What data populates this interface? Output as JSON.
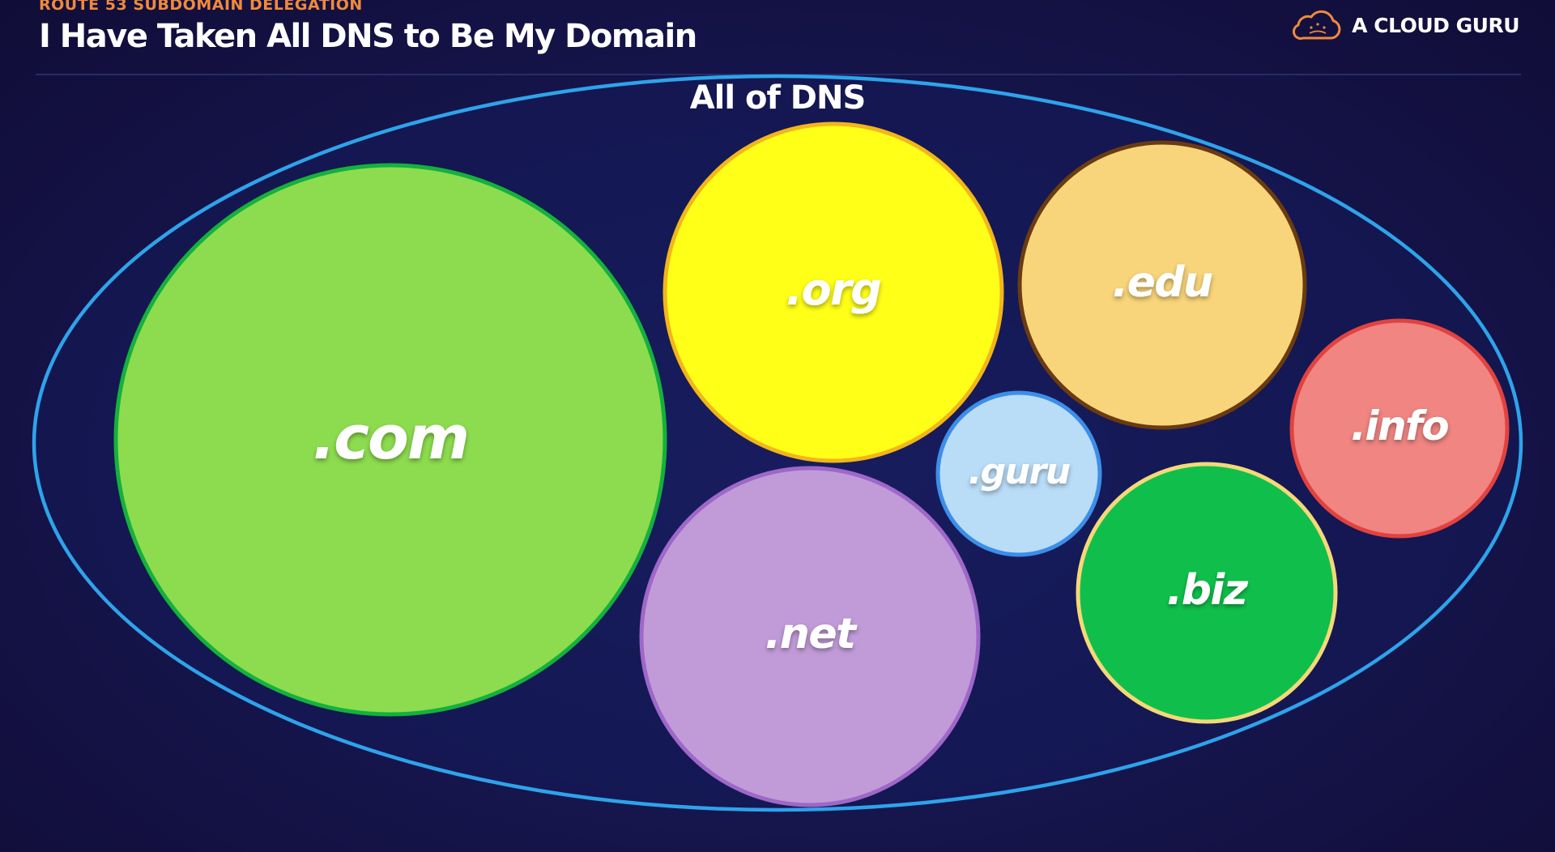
{
  "header": {
    "eyebrow": "ROUTE 53 SUBDOMAIN DELEGATION",
    "title": "I Have Taken All DNS to Be My Domain"
  },
  "brand": {
    "name": "A CLOUD GURU",
    "icon": "cloud-guru-logo-icon",
    "color": "#f08a3c"
  },
  "diagram": {
    "container_label": "All of DNS",
    "container_color": "#2ea3ea",
    "domains": [
      {
        "label": ".com",
        "fill": "#8ddc4f",
        "stroke": "#14b13c"
      },
      {
        "label": ".org",
        "fill": "#ffff17",
        "stroke": "#f2b61a"
      },
      {
        "label": ".edu",
        "fill": "#f8d57a",
        "stroke": "#6b3b10"
      },
      {
        "label": ".guru",
        "fill": "#b9dcf7",
        "stroke": "#3c8ee8"
      },
      {
        "label": ".net",
        "fill": "#c19bd8",
        "stroke": "#9e67c8"
      },
      {
        "label": ".info",
        "fill": "#f08582",
        "stroke": "#e2423f"
      },
      {
        "label": ".biz",
        "fill": "#10bf4b",
        "stroke": "#f5d878"
      }
    ]
  }
}
